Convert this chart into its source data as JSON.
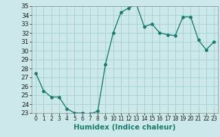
{
  "title": "",
  "xlabel": "Humidex (Indice chaleur)",
  "ylabel": "",
  "x": [
    0,
    1,
    2,
    3,
    4,
    5,
    6,
    7,
    8,
    9,
    10,
    11,
    12,
    13,
    14,
    15,
    16,
    17,
    18,
    19,
    20,
    21,
    22,
    23
  ],
  "y": [
    27.5,
    25.5,
    24.8,
    24.8,
    23.5,
    23.0,
    23.0,
    22.9,
    23.2,
    28.5,
    32.0,
    34.3,
    34.8,
    35.2,
    32.7,
    33.0,
    32.0,
    31.8,
    31.7,
    33.8,
    33.8,
    31.2,
    30.1,
    31.0
  ],
  "line_color": "#1a7a6e",
  "bg_color": "#cce8e8",
  "grid_color": "#9fcfcf",
  "ylim": [
    23,
    35
  ],
  "xlim": [
    -0.5,
    23.5
  ],
  "yticks": [
    23,
    24,
    25,
    26,
    27,
    28,
    29,
    30,
    31,
    32,
    33,
    34,
    35
  ],
  "xticks": [
    0,
    1,
    2,
    3,
    4,
    5,
    6,
    7,
    8,
    9,
    10,
    11,
    12,
    13,
    14,
    15,
    16,
    17,
    18,
    19,
    20,
    21,
    22,
    23
  ],
  "marker": "o",
  "markersize": 2.5,
  "linewidth": 1.0,
  "xlabel_fontsize": 7.5,
  "tick_fontsize": 6.5
}
